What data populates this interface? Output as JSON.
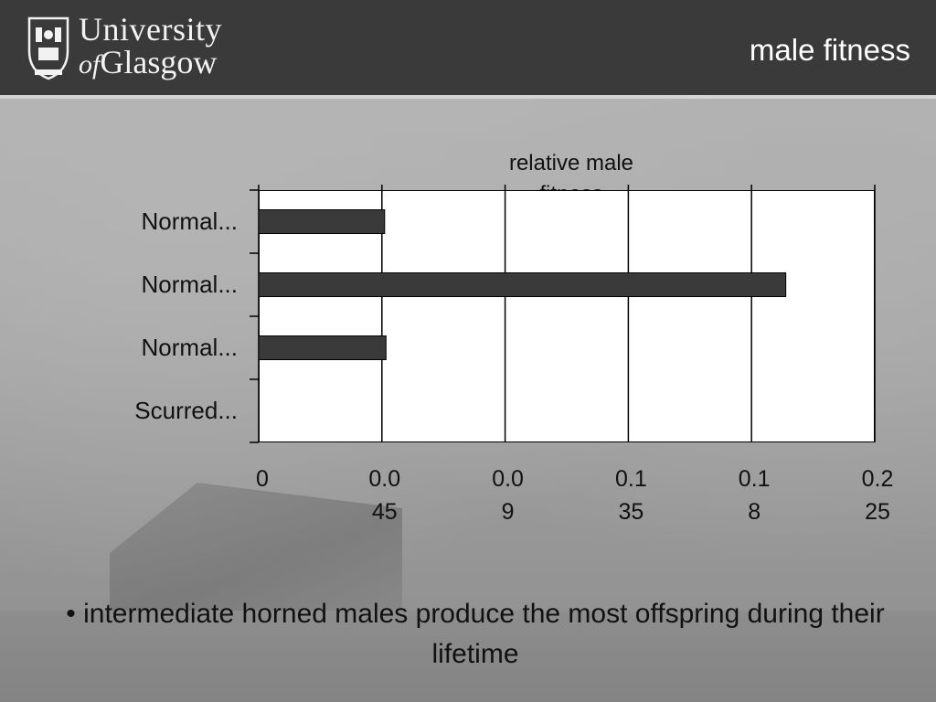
{
  "header": {
    "logo_line1": "University",
    "logo_line2_of": "of",
    "logo_line2_rest": "Glasgow",
    "slide_title": "male fitness"
  },
  "chart_data": {
    "type": "bar",
    "orientation": "horizontal",
    "title": "relative male fitness",
    "categories": [
      "Normal...",
      "Normal...",
      "Normal...",
      "Scurred..."
    ],
    "values": [
      0.046,
      0.1925,
      0.0465,
      0
    ],
    "xlim": [
      0,
      0.225
    ],
    "xticks": [
      0,
      0.045,
      0.09,
      0.135,
      0.18,
      0.225
    ],
    "xtick_labels": [
      [
        "0",
        ""
      ],
      [
        "0.0",
        "45"
      ],
      [
        "0.0",
        "9"
      ],
      [
        "0.1",
        "35"
      ],
      [
        "0.1",
        "8"
      ],
      [
        "0.2",
        "25"
      ]
    ],
    "grid": "vertical",
    "bar_color": "#3a3a3a"
  },
  "footer": {
    "bullet": "• intermediate horned males produce the most offspring during their lifetime"
  }
}
